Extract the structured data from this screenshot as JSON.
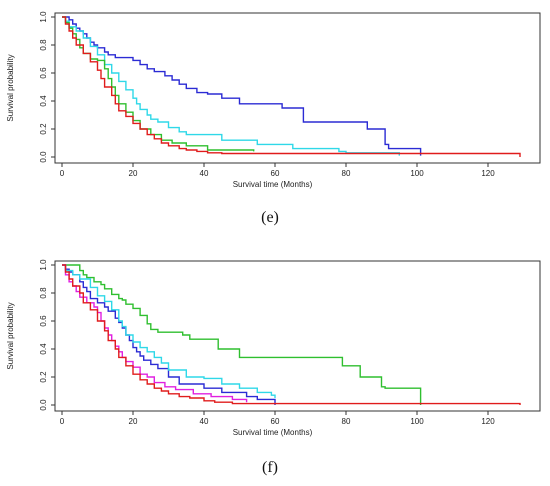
{
  "chart_data": [
    {
      "type": "line",
      "panel_label": "(e)",
      "xlabel": "Survival time (Months)",
      "ylabel": "Survival probability",
      "xlim": [
        0,
        130
      ],
      "ylim": [
        0,
        1
      ],
      "xticks": [
        0,
        20,
        40,
        60,
        80,
        100,
        120
      ],
      "yticks": [
        0.0,
        0.2,
        0.4,
        0.6,
        0.8,
        1.0
      ],
      "ytick_labels": [
        "0.0",
        "0.2",
        "0.4",
        "0.6",
        "0.8",
        "1.0"
      ],
      "grid": false,
      "legend": "none",
      "series": [
        {
          "color": "#2b2bd4",
          "points": [
            [
              0,
              1.0
            ],
            [
              2,
              0.98
            ],
            [
              3,
              0.95
            ],
            [
              4,
              0.92
            ],
            [
              5,
              0.9
            ],
            [
              6,
              0.88
            ],
            [
              7,
              0.85
            ],
            [
              8,
              0.82
            ],
            [
              9,
              0.8
            ],
            [
              10,
              0.78
            ],
            [
              12,
              0.75
            ],
            [
              13,
              0.73
            ],
            [
              15,
              0.71
            ],
            [
              20,
              0.69
            ],
            [
              22,
              0.66
            ],
            [
              24,
              0.63
            ],
            [
              26,
              0.61
            ],
            [
              29,
              0.58
            ],
            [
              31,
              0.55
            ],
            [
              33,
              0.52
            ],
            [
              35,
              0.49
            ],
            [
              38,
              0.46
            ],
            [
              41,
              0.45
            ],
            [
              45,
              0.42
            ],
            [
              50,
              0.38
            ],
            [
              62,
              0.35
            ],
            [
              68,
              0.25
            ],
            [
              86,
              0.2
            ],
            [
              91,
              0.09
            ],
            [
              92,
              0.06
            ],
            [
              101,
              0.01
            ]
          ]
        },
        {
          "color": "#2fd8e8",
          "points": [
            [
              0,
              1.0
            ],
            [
              1,
              0.97
            ],
            [
              2,
              0.93
            ],
            [
              4,
              0.9
            ],
            [
              6,
              0.85
            ],
            [
              8,
              0.79
            ],
            [
              10,
              0.73
            ],
            [
              12,
              0.66
            ],
            [
              14,
              0.6
            ],
            [
              16,
              0.54
            ],
            [
              18,
              0.48
            ],
            [
              20,
              0.42
            ],
            [
              21,
              0.38
            ],
            [
              22,
              0.34
            ],
            [
              24,
              0.3
            ],
            [
              25,
              0.27
            ],
            [
              27,
              0.25
            ],
            [
              30,
              0.21
            ],
            [
              33,
              0.18
            ],
            [
              35,
              0.16
            ],
            [
              45,
              0.12
            ],
            [
              55,
              0.09
            ],
            [
              65,
              0.06
            ],
            [
              78,
              0.04
            ],
            [
              80,
              0.03
            ],
            [
              95,
              0.01
            ]
          ]
        },
        {
          "color": "#2fbf2f",
          "points": [
            [
              0,
              1.0
            ],
            [
              1,
              0.96
            ],
            [
              2,
              0.92
            ],
            [
              3,
              0.88
            ],
            [
              4,
              0.84
            ],
            [
              5,
              0.78
            ],
            [
              6,
              0.74
            ],
            [
              8,
              0.7
            ],
            [
              10,
              0.69
            ],
            [
              12,
              0.63
            ],
            [
              13,
              0.56
            ],
            [
              14,
              0.5
            ],
            [
              15,
              0.44
            ],
            [
              16,
              0.38
            ],
            [
              18,
              0.32
            ],
            [
              20,
              0.26
            ],
            [
              22,
              0.2
            ],
            [
              25,
              0.16
            ],
            [
              28,
              0.12
            ],
            [
              31,
              0.1
            ],
            [
              35,
              0.08
            ],
            [
              41,
              0.05
            ],
            [
              54,
              0.04
            ]
          ]
        },
        {
          "color": "#e01c1c",
          "points": [
            [
              0,
              1.0
            ],
            [
              1,
              0.95
            ],
            [
              2,
              0.9
            ],
            [
              3,
              0.85
            ],
            [
              4,
              0.8
            ],
            [
              6,
              0.74
            ],
            [
              8,
              0.68
            ],
            [
              10,
              0.62
            ],
            [
              11,
              0.56
            ],
            [
              12,
              0.5
            ],
            [
              14,
              0.44
            ],
            [
              15,
              0.38
            ],
            [
              16,
              0.33
            ],
            [
              18,
              0.29
            ],
            [
              20,
              0.24
            ],
            [
              22,
              0.2
            ],
            [
              24,
              0.16
            ],
            [
              26,
              0.13
            ],
            [
              28,
              0.1
            ],
            [
              30,
              0.08
            ],
            [
              33,
              0.06
            ],
            [
              35,
              0.05
            ],
            [
              38,
              0.04
            ],
            [
              41,
              0.03
            ],
            [
              45,
              0.025
            ],
            [
              129,
              0.025
            ],
            [
              129,
              0.0
            ]
          ]
        }
      ]
    },
    {
      "type": "line",
      "panel_label": "(f)",
      "xlabel": "Survival time (Months)",
      "ylabel": "Survival probability",
      "xlim": [
        0,
        130
      ],
      "ylim": [
        0,
        1
      ],
      "xticks": [
        0,
        20,
        40,
        60,
        80,
        100,
        120
      ],
      "yticks": [
        0.0,
        0.2,
        0.4,
        0.6,
        0.8,
        1.0
      ],
      "ytick_labels": [
        "0.0",
        "0.2",
        "0.4",
        "0.6",
        "0.8",
        "1.0"
      ],
      "grid": false,
      "legend": "none",
      "series": [
        {
          "color": "#2fbf2f",
          "points": [
            [
              0,
              1.0
            ],
            [
              4,
              1.0
            ],
            [
              5,
              0.96
            ],
            [
              6,
              0.93
            ],
            [
              7,
              0.91
            ],
            [
              9,
              0.88
            ],
            [
              11,
              0.86
            ],
            [
              12,
              0.83
            ],
            [
              14,
              0.79
            ],
            [
              16,
              0.76
            ],
            [
              17,
              0.75
            ],
            [
              18,
              0.72
            ],
            [
              20,
              0.69
            ],
            [
              22,
              0.64
            ],
            [
              24,
              0.58
            ],
            [
              25,
              0.54
            ],
            [
              27,
              0.52
            ],
            [
              34,
              0.5
            ],
            [
              36,
              0.47
            ],
            [
              44,
              0.4
            ],
            [
              49,
              0.4
            ],
            [
              50,
              0.34
            ],
            [
              79,
              0.28
            ],
            [
              84,
              0.2
            ],
            [
              90,
              0.13
            ],
            [
              91,
              0.12
            ],
            [
              101,
              0.06
            ],
            [
              101,
              0.0
            ]
          ]
        },
        {
          "color": "#2b2bd4",
          "points": [
            [
              0,
              1.0
            ],
            [
              1,
              0.97
            ],
            [
              2,
              0.95
            ],
            [
              3,
              0.93
            ],
            [
              5,
              0.88
            ],
            [
              6,
              0.84
            ],
            [
              7,
              0.81
            ],
            [
              8,
              0.76
            ],
            [
              10,
              0.73
            ],
            [
              12,
              0.7
            ],
            [
              13,
              0.67
            ],
            [
              15,
              0.62
            ],
            [
              16,
              0.59
            ],
            [
              17,
              0.55
            ],
            [
              18,
              0.5
            ],
            [
              19,
              0.46
            ],
            [
              20,
              0.41
            ],
            [
              21,
              0.38
            ],
            [
              22,
              0.35
            ],
            [
              23,
              0.32
            ],
            [
              25,
              0.29
            ],
            [
              27,
              0.26
            ],
            [
              30,
              0.2
            ],
            [
              33,
              0.15
            ],
            [
              40,
              0.12
            ],
            [
              45,
              0.09
            ],
            [
              52,
              0.06
            ],
            [
              55,
              0.04
            ],
            [
              60,
              0.04
            ],
            [
              60,
              0.0
            ]
          ]
        },
        {
          "color": "#2fd8e8",
          "points": [
            [
              0,
              1.0
            ],
            [
              1,
              0.96
            ],
            [
              3,
              0.93
            ],
            [
              5,
              0.9
            ],
            [
              8,
              0.84
            ],
            [
              10,
              0.78
            ],
            [
              12,
              0.74
            ],
            [
              14,
              0.68
            ],
            [
              16,
              0.6
            ],
            [
              17,
              0.56
            ],
            [
              18,
              0.5
            ],
            [
              20,
              0.45
            ],
            [
              22,
              0.41
            ],
            [
              24,
              0.38
            ],
            [
              26,
              0.34
            ],
            [
              28,
              0.3
            ],
            [
              30,
              0.25
            ],
            [
              35,
              0.2
            ],
            [
              40,
              0.19
            ],
            [
              45,
              0.15
            ],
            [
              50,
              0.12
            ],
            [
              55,
              0.09
            ],
            [
              59,
              0.07
            ],
            [
              60,
              0.05
            ]
          ]
        },
        {
          "color": "#e020e0",
          "points": [
            [
              0,
              1.0
            ],
            [
              1,
              0.93
            ],
            [
              2,
              0.88
            ],
            [
              3,
              0.85
            ],
            [
              4,
              0.81
            ],
            [
              5,
              0.77
            ],
            [
              7,
              0.73
            ],
            [
              9,
              0.7
            ],
            [
              10,
              0.66
            ],
            [
              11,
              0.6
            ],
            [
              12,
              0.55
            ],
            [
              13,
              0.5
            ],
            [
              14,
              0.46
            ],
            [
              15,
              0.42
            ],
            [
              16,
              0.38
            ],
            [
              17,
              0.34
            ],
            [
              18,
              0.31
            ],
            [
              20,
              0.27
            ],
            [
              22,
              0.22
            ],
            [
              24,
              0.2
            ],
            [
              26,
              0.16
            ],
            [
              29,
              0.13
            ],
            [
              32,
              0.11
            ],
            [
              37,
              0.08
            ],
            [
              42,
              0.06
            ],
            [
              48,
              0.04
            ],
            [
              52,
              0.02
            ]
          ]
        },
        {
          "color": "#e01c1c",
          "points": [
            [
              0,
              1.0
            ],
            [
              1,
              0.95
            ],
            [
              2,
              0.9
            ],
            [
              3,
              0.85
            ],
            [
              5,
              0.8
            ],
            [
              6,
              0.73
            ],
            [
              8,
              0.68
            ],
            [
              10,
              0.6
            ],
            [
              12,
              0.53
            ],
            [
              13,
              0.46
            ],
            [
              15,
              0.4
            ],
            [
              16,
              0.34
            ],
            [
              18,
              0.28
            ],
            [
              20,
              0.22
            ],
            [
              22,
              0.18
            ],
            [
              24,
              0.15
            ],
            [
              26,
              0.12
            ],
            [
              28,
              0.1
            ],
            [
              30,
              0.08
            ],
            [
              33,
              0.06
            ],
            [
              36,
              0.05
            ],
            [
              40,
              0.03
            ],
            [
              43,
              0.02
            ],
            [
              48,
              0.01
            ],
            [
              129,
              0.01
            ],
            [
              129,
              0.0
            ]
          ]
        }
      ]
    }
  ]
}
